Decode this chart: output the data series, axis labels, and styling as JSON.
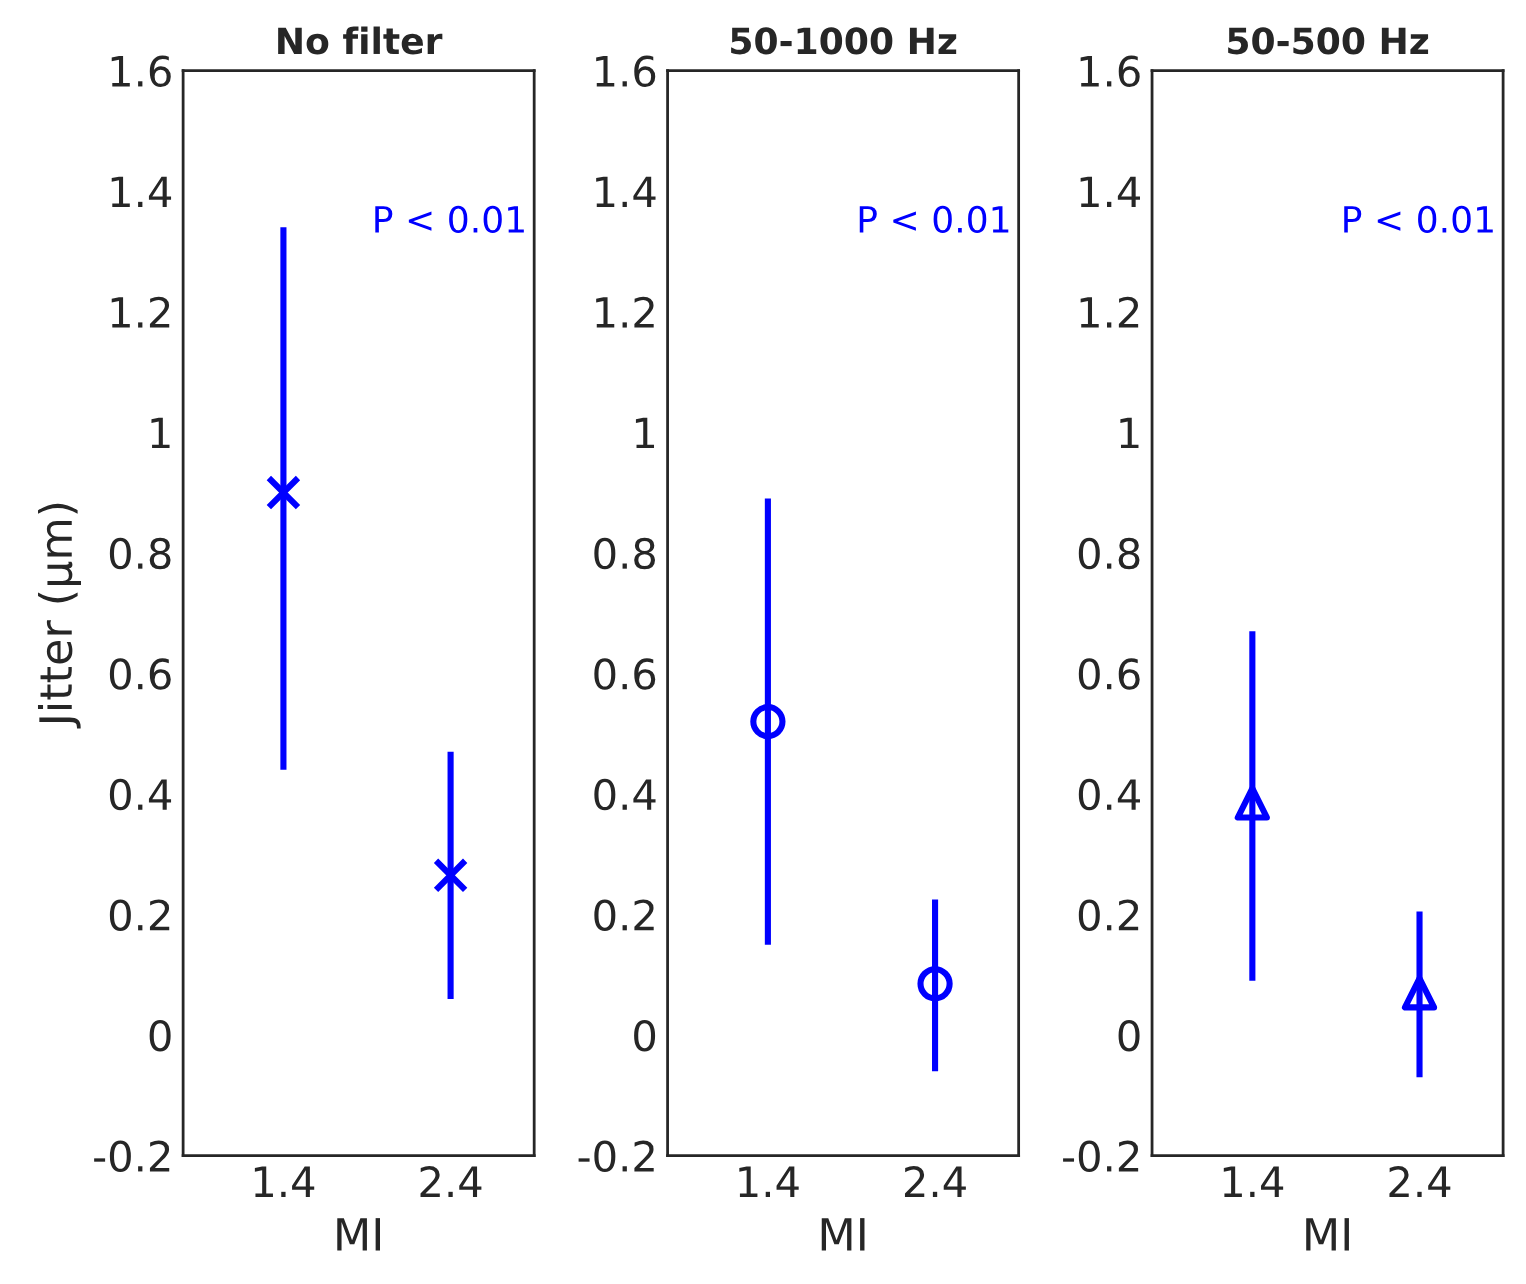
{
  "chart_data": [
    {
      "type": "scatter",
      "title": "No filter",
      "xlabel": "MI",
      "ylabel": "Jitter (μm)",
      "categories": [
        "1.4",
        "2.4"
      ],
      "ylim": [
        -0.2,
        1.6
      ],
      "yticks": [
        -0.2,
        0,
        0.2,
        0.4,
        0.6,
        0.8,
        1,
        1.2,
        1.4,
        1.6
      ],
      "marker": "cross",
      "grid": false,
      "legend": false,
      "annotations": [
        "P < 0.01"
      ],
      "series": [
        {
          "color": "#0000ff",
          "values": [
            0.9,
            0.265
          ],
          "errors": [
            [
              0.44,
              1.34
            ],
            [
              0.06,
              0.47
            ]
          ]
        }
      ]
    },
    {
      "type": "scatter",
      "title": "50-1000 Hz",
      "xlabel": "MI",
      "categories": [
        "1.4",
        "2.4"
      ],
      "ylim": [
        -0.2,
        1.6
      ],
      "yticks": [
        -0.2,
        0,
        0.2,
        0.4,
        0.6,
        0.8,
        1,
        1.2,
        1.4,
        1.6
      ],
      "marker": "circle",
      "grid": false,
      "legend": false,
      "annotations": [
        "P < 0.01"
      ],
      "series": [
        {
          "color": "#0000ff",
          "values": [
            0.52,
            0.085
          ],
          "errors": [
            [
              0.15,
              0.89
            ],
            [
              -0.06,
              0.225
            ]
          ]
        }
      ]
    },
    {
      "type": "scatter",
      "title": "50-500 Hz",
      "xlabel": "MI",
      "categories": [
        "1.4",
        "2.4"
      ],
      "ylim": [
        -0.2,
        1.6
      ],
      "yticks": [
        -0.2,
        0,
        0.2,
        0.4,
        0.6,
        0.8,
        1,
        1.2,
        1.4,
        1.6
      ],
      "marker": "triangle",
      "grid": false,
      "legend": false,
      "annotations": [
        "P < 0.01"
      ],
      "series": [
        {
          "color": "#0000ff",
          "values": [
            0.385,
            0.07
          ],
          "errors": [
            [
              0.09,
              0.67
            ],
            [
              -0.07,
              0.205
            ]
          ]
        }
      ]
    }
  ]
}
